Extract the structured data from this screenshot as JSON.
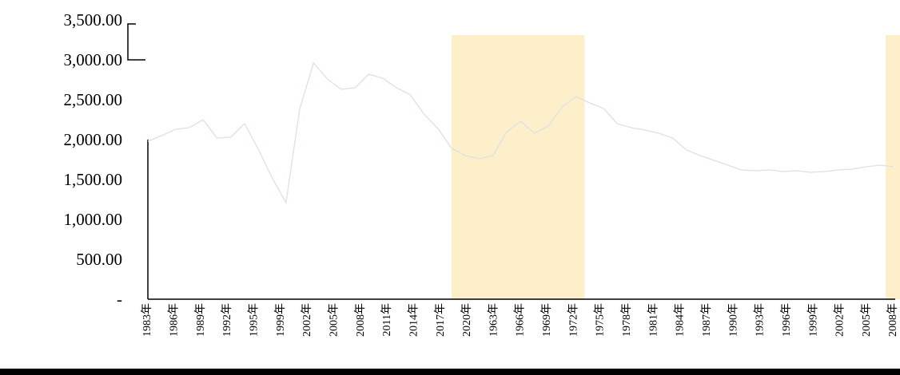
{
  "chart_data": {
    "type": "line",
    "title": "",
    "xlabel": "",
    "ylabel": "",
    "ylim": [
      0,
      3500
    ],
    "y_ticks": [
      "3,500.00",
      "3,000.00",
      "2,500.00",
      "2,000.00",
      "1,500.00",
      "1,000.00",
      "500.00",
      "-"
    ],
    "y_tick_values": [
      3500,
      3000,
      2500,
      2000,
      1500,
      1000,
      500,
      0
    ],
    "x_tick_labels": [
      "1983年",
      "1986年",
      "1989年",
      "1992年",
      "1995年",
      "1999年",
      "2002年",
      "2005年",
      "2008年",
      "2011年",
      "2014年",
      "2017年",
      "2020年",
      "1963年",
      "1966年",
      "1969年",
      "1972年",
      "1975年",
      "1978年",
      "1981年",
      "1984年",
      "1987年",
      "1990年",
      "1993年",
      "1996年",
      "1999年",
      "2002年",
      "2005年",
      "2008年"
    ],
    "grid": false,
    "legend": "none",
    "series": [
      {
        "color": "#d9e2e4",
        "values": [
          1980,
          2050,
          2130,
          2150,
          2250,
          2020,
          2030,
          2200,
          1880,
          1520,
          1210,
          2390,
          2960,
          2760,
          2630,
          2650,
          2820,
          2770,
          2650,
          2560,
          2320,
          2140,
          1890,
          1800,
          1760,
          1800,
          2100,
          2230,
          2080,
          2170,
          2410,
          2540,
          2460,
          2390,
          2200,
          2150,
          2120,
          2080,
          2020,
          1870,
          1800,
          1740,
          1680,
          1620,
          1610,
          1620,
          1600,
          1610,
          1590,
          1600,
          1620,
          1630,
          1660,
          1680,
          1660
        ]
      }
    ],
    "shaded_bands": [
      {
        "label": "recession-band-1",
        "x_start": 11.4,
        "x_end": 16.4,
        "color": "#fdefc9"
      },
      {
        "label": "recession-band-2",
        "x_start": 27.7,
        "x_end": 32.6,
        "color": "#fdefc9"
      }
    ]
  }
}
